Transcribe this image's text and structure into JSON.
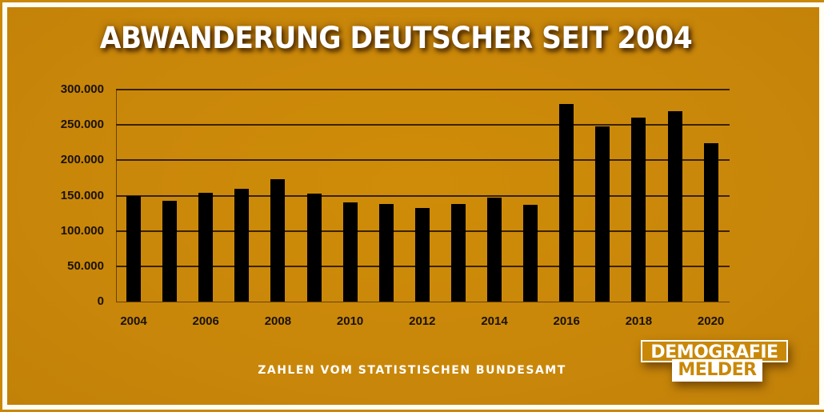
{
  "title": "ABWANDERUNG DEUTSCHER SEIT 2004",
  "source_note": "ZAHLEN VOM STATISTISCHEN BUNDESAMT",
  "logo": {
    "line1": "DEMOGRAFIE",
    "line2": "MELDER"
  },
  "colors": {
    "background": "#c98807",
    "frame": "#fffdf4",
    "bars": "#000000",
    "gridlines": "#3a2200",
    "title": "#ffffff"
  },
  "yaxis": {
    "ticks": [
      "0",
      "50.000",
      "100.000",
      "150.000",
      "200.000",
      "250.000",
      "300.000"
    ]
  },
  "xaxis": {
    "ticks": [
      "2004",
      "2006",
      "2008",
      "2010",
      "2012",
      "2014",
      "2016",
      "2018",
      "2020"
    ]
  },
  "chart_data": {
    "type": "bar",
    "title": "ABWANDERUNG DEUTSCHER SEIT 2004",
    "subtitle": "ZAHLEN VOM STATISTISCHEN BUNDESAMT",
    "xlabel": "",
    "ylabel": "",
    "categories": [
      "2004",
      "2005",
      "2006",
      "2007",
      "2008",
      "2009",
      "2010",
      "2011",
      "2012",
      "2013",
      "2014",
      "2015",
      "2016",
      "2017",
      "2018",
      "2019",
      "2020"
    ],
    "values": [
      149000,
      143000,
      154000,
      160000,
      173000,
      153000,
      140000,
      138000,
      132000,
      138000,
      147000,
      137000,
      280000,
      248000,
      260000,
      270000,
      224000
    ],
    "ylim": [
      0,
      300000
    ],
    "yticks": [
      0,
      50000,
      100000,
      150000,
      200000,
      250000,
      300000
    ],
    "ytick_labels": [
      "0",
      "50.000",
      "100.000",
      "150.000",
      "200.000",
      "250.000",
      "300.000"
    ],
    "xtick_labels": [
      "2004",
      "2006",
      "2008",
      "2010",
      "2012",
      "2014",
      "2016",
      "2018",
      "2020"
    ],
    "grid": true,
    "legend": null,
    "bar_color": "#000000"
  }
}
